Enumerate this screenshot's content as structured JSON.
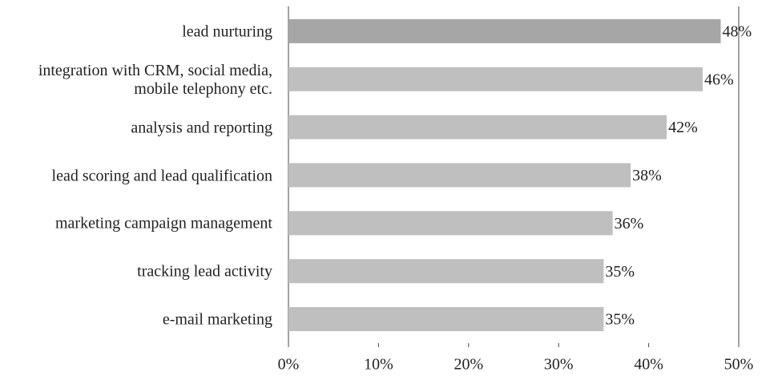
{
  "chart_data": {
    "type": "barh",
    "categories": [
      "lead nurturing",
      "integration with CRM, social media, mobile telephony etc.",
      "analysis and reporting",
      "lead scoring and lead qualification",
      "marketing campaign management",
      "tracking lead activity",
      "e-mail marketing"
    ],
    "values": [
      48,
      46,
      42,
      38,
      36,
      35,
      35
    ],
    "value_labels": [
      "48%",
      "46%",
      "42%",
      "38%",
      "36%",
      "35%",
      "35%"
    ],
    "colors": [
      "#a6a6a6",
      "#bfbfbf",
      "#bfbfbf",
      "#bfbfbf",
      "#bfbfbf",
      "#bfbfbf",
      "#bfbfbf"
    ],
    "xlim": [
      0,
      50
    ],
    "xticks": [
      {
        "value": 0,
        "label": "0%"
      },
      {
        "value": 10,
        "label": "10%"
      },
      {
        "value": 20,
        "label": "20%"
      },
      {
        "value": 30,
        "label": "30%"
      },
      {
        "value": 40,
        "label": "40%"
      },
      {
        "value": 50,
        "label": "50%"
      }
    ],
    "grid": false
  }
}
